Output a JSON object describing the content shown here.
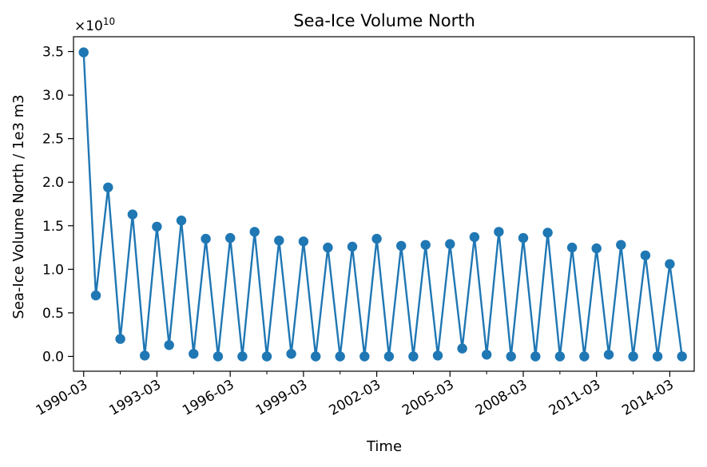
{
  "chart_data": {
    "type": "line",
    "title": "Sea-Ice Volume North",
    "xlabel": "Time",
    "ylabel": "Sea-Ice Volume North / 1e3 m3",
    "y_offset_label": "×10",
    "y_offset_exponent": "10",
    "y_scale": 10000000000,
    "ylim": [
      -0.17,
      3.67
    ],
    "yticks": [
      0.0,
      0.5,
      1.0,
      1.5,
      2.0,
      2.5,
      3.0,
      3.5
    ],
    "ytick_labels": [
      "0.0",
      "0.5",
      "1.0",
      "1.5",
      "2.0",
      "2.5",
      "3.0",
      "3.5"
    ],
    "xlim": [
      "1989-10",
      "2015-03"
    ],
    "xticks": [
      "1990-03",
      "1993-03",
      "1996-03",
      "1999-03",
      "2002-03",
      "2005-03",
      "2008-03",
      "2011-03",
      "2014-03"
    ],
    "xticks_minor": [
      "1991-09",
      "1994-09",
      "1997-09",
      "2000-09",
      "2003-09",
      "2006-09",
      "2009-09",
      "2012-09"
    ],
    "grid": false,
    "legend": "none",
    "colors": {
      "series": "#1f77b4"
    },
    "series": [
      {
        "x": [
          "1990-03",
          "1990-09",
          "1991-03",
          "1991-09",
          "1992-03",
          "1992-09",
          "1993-03",
          "1993-09",
          "1994-03",
          "1994-09",
          "1995-03",
          "1995-09",
          "1996-03",
          "1996-09",
          "1997-03",
          "1997-09",
          "1998-03",
          "1998-09",
          "1999-03",
          "1999-09",
          "2000-03",
          "2000-09",
          "2001-03",
          "2001-09",
          "2002-03",
          "2002-09",
          "2003-03",
          "2003-09",
          "2004-03",
          "2004-09",
          "2005-03",
          "2005-09",
          "2006-03",
          "2006-09",
          "2007-03",
          "2007-09",
          "2008-03",
          "2008-09",
          "2009-03",
          "2009-09",
          "2010-03",
          "2010-09",
          "2011-03",
          "2011-09",
          "2012-03",
          "2012-09",
          "2013-03",
          "2013-09",
          "2014-03",
          "2014-09"
        ],
        "values": [
          3.49,
          0.7,
          1.94,
          0.2,
          1.63,
          0.01,
          1.49,
          0.13,
          1.56,
          0.03,
          1.35,
          0.0,
          1.36,
          0.0,
          1.43,
          0.0,
          1.33,
          0.03,
          1.32,
          0.0,
          1.25,
          0.0,
          1.26,
          0.0,
          1.35,
          0.0,
          1.27,
          0.0,
          1.28,
          0.01,
          1.29,
          0.09,
          1.37,
          0.02,
          1.43,
          0.0,
          1.36,
          0.0,
          1.42,
          0.0,
          1.25,
          0.0,
          1.24,
          0.02,
          1.28,
          0.0,
          1.16,
          0.0,
          1.06,
          0.0
        ]
      }
    ]
  }
}
